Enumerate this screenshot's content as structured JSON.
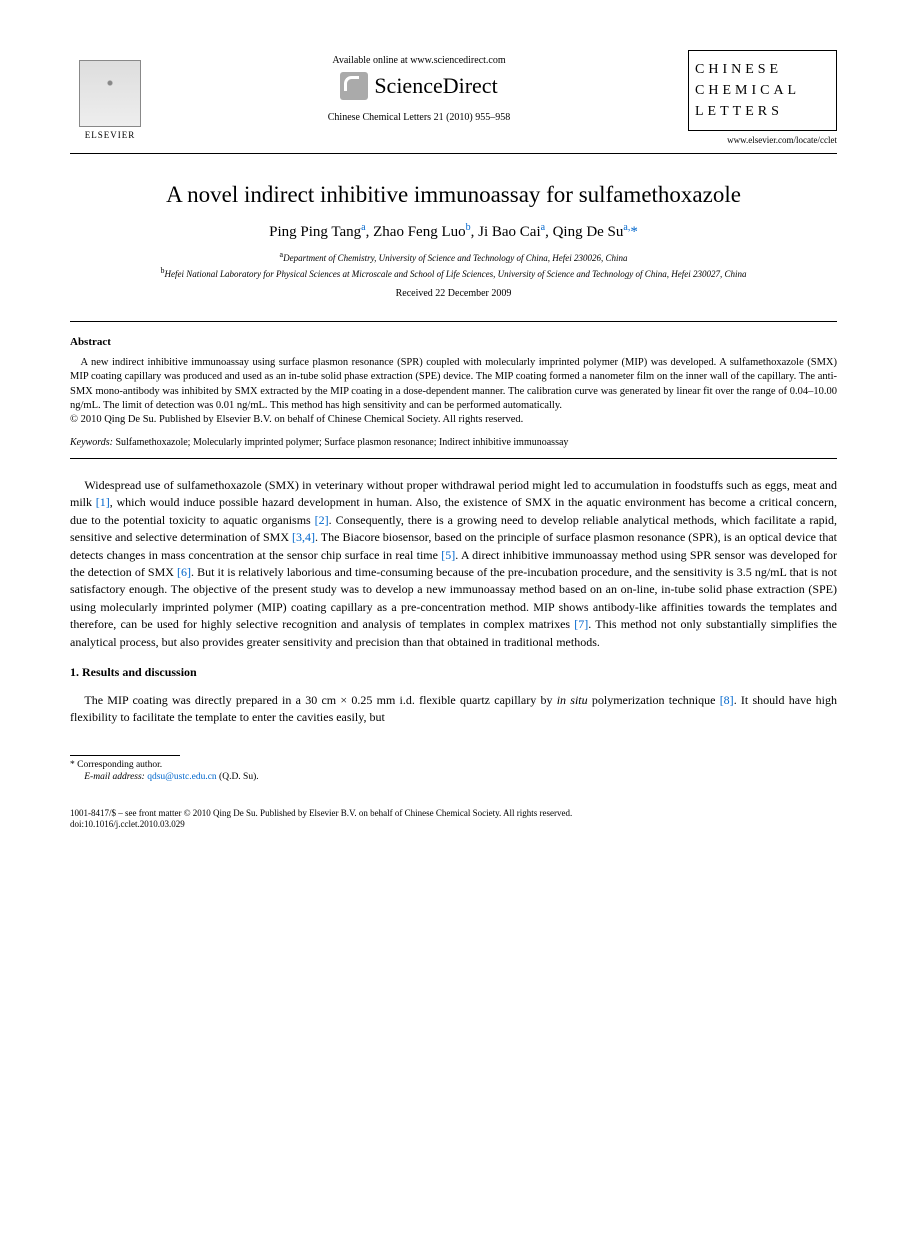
{
  "header": {
    "available_online": "Available online at www.sciencedirect.com",
    "sd_brand": "ScienceDirect",
    "journal_cite": "Chinese Chemical Letters 21 (2010) 955–958",
    "elsevier_label": "ELSEVIER",
    "journal_box_line1": "CHINESE",
    "journal_box_line2": "CHEMICAL",
    "journal_box_line3": "LETTERS",
    "locate_url": "www.elsevier.com/locate/cclet"
  },
  "article": {
    "title": "A novel indirect inhibitive immunoassay for sulfamethoxazole",
    "authors_html": "Ping Ping Tang",
    "author1": "Ping Ping Tang",
    "author1_sup": "a",
    "author2": "Zhao Feng Luo",
    "author2_sup": "b",
    "author3": "Ji Bao Cai",
    "author3_sup": "a",
    "author4": "Qing De Su",
    "author4_sup": "a,",
    "corr_mark": "*",
    "affil_a_sup": "a",
    "affil_a": "Department of Chemistry, University of Science and Technology of China, Hefei 230026, China",
    "affil_b_sup": "b",
    "affil_b": "Hefei National Laboratory for Physical Sciences at Microscale and School of Life Sciences, University of Science and Technology of China, Hefei 230027, China",
    "received": "Received 22 December 2009"
  },
  "abstract": {
    "heading": "Abstract",
    "text": "A new indirect inhibitive immunoassay using surface plasmon resonance (SPR) coupled with molecularly imprinted polymer (MIP) was developed. A sulfamethoxazole (SMX) MIP coating capillary was produced and used as an in-tube solid phase extraction (SPE) device. The MIP coating formed a nanometer film on the inner wall of the capillary. The anti-SMX mono-antibody was inhibited by SMX extracted by the MIP coating in a dose-dependent manner. The calibration curve was generated by linear fit over the range of 0.04–10.00 ng/mL. The limit of detection was 0.01 ng/mL. This method has high sensitivity and can be performed automatically.",
    "copyright": "© 2010 Qing De Su. Published by Elsevier B.V. on behalf of Chinese Chemical Society. All rights reserved.",
    "keywords_label": "Keywords:",
    "keywords": " Sulfamethoxazole; Molecularly imprinted polymer; Surface plasmon resonance; Indirect inhibitive immunoassay"
  },
  "body": {
    "para1_a": "Widespread use of sulfamethoxazole (SMX) in veterinary without proper withdrawal period might led to accumulation in foodstuffs such as eggs, meat and milk ",
    "ref1": "[1]",
    "para1_b": ", which would induce possible hazard development in human. Also, the existence of SMX in the aquatic environment has become a critical concern, due to the potential toxicity to aquatic organisms ",
    "ref2": "[2]",
    "para1_c": ". Consequently, there is a growing need to develop reliable analytical methods, which facilitate a rapid, sensitive and selective determination of SMX ",
    "ref34": "[3,4]",
    "para1_d": ". The Biacore biosensor, based on the principle of surface plasmon resonance (SPR), is an optical device that detects changes in mass concentration at the sensor chip surface in real time ",
    "ref5": "[5]",
    "para1_e": ". A direct inhibitive immunoassay method using SPR sensor was developed for the detection of SMX ",
    "ref6": "[6]",
    "para1_f": ". But it is relatively laborious and time-consuming because of the pre-incubation procedure, and the sensitivity is 3.5 ng/mL that is not satisfactory enough. The objective of the present study was to develop a new immunoassay method based on an on-line, in-tube solid phase extraction (SPE) using molecularly imprinted polymer (MIP) coating capillary as a pre-concentration method. MIP shows antibody-like affinities towards the templates and therefore, can be used for highly selective recognition and analysis of templates in complex matrixes ",
    "ref7": "[7]",
    "para1_g": ". This method not only substantially simplifies the analytical process, but also provides greater sensitivity and precision than that obtained in traditional methods.",
    "section1_heading": "1. Results and discussion",
    "para2_a": "The MIP coating was directly prepared in a 30 cm × 0.25 mm i.d. flexible quartz capillary by ",
    "para2_italic": "in situ",
    "para2_b": " polymerization technique ",
    "ref8": "[8]",
    "para2_c": ". It should have high flexibility to facilitate the template to enter the cavities easily, but"
  },
  "footer": {
    "corr_label": "* Corresponding author.",
    "email_label": "E-mail address:",
    "email_addr": "qdsu@ustc.edu.cn",
    "email_person": " (Q.D. Su).",
    "issn_line": "1001-8417/$ – see front matter © 2010 Qing De Su. Published by Elsevier B.V. on behalf of Chinese Chemical Society. All rights reserved.",
    "doi_line": "doi:10.1016/j.cclet.2010.03.029"
  },
  "colors": {
    "link": "#0066cc",
    "text": "#000000",
    "bg": "#ffffff"
  }
}
